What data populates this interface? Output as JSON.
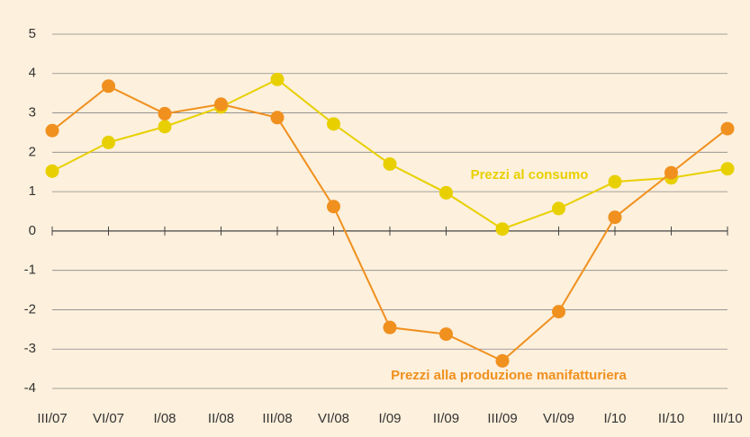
{
  "chart_data": {
    "type": "line",
    "categories": [
      "III/07",
      "VI/07",
      "I/08",
      "II/08",
      "III/08",
      "VI/08",
      "I/09",
      "II/09",
      "III/09",
      "VI/09",
      "I/10",
      "II/10",
      "III/10"
    ],
    "series": [
      {
        "name": "Prezzi al consumo",
        "color": "#e8d000",
        "values": [
          1.52,
          2.25,
          2.65,
          3.15,
          3.85,
          2.72,
          1.7,
          0.97,
          0.05,
          0.57,
          1.25,
          1.35,
          1.58
        ]
      },
      {
        "name": "Prezzi alla produzione manifatturiera",
        "color": "#f0901e",
        "values": [
          2.55,
          3.68,
          2.98,
          3.22,
          2.88,
          0.62,
          -2.45,
          -2.62,
          -3.3,
          -2.05,
          0.35,
          1.48,
          2.6
        ]
      }
    ],
    "ylim": [
      -4,
      5
    ],
    "yticks": [
      -4,
      -3,
      -2,
      -1,
      0,
      1,
      2,
      3,
      4,
      5
    ],
    "grid": true
  }
}
